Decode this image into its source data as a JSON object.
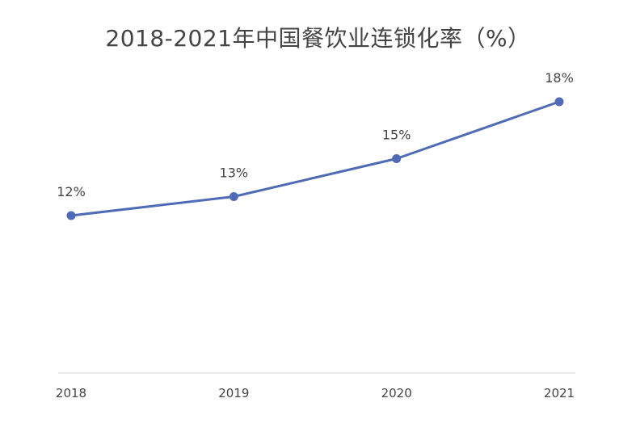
{
  "chart_data": {
    "type": "line",
    "title": "2018-2021年中国餐饮业连锁化率（%）",
    "categories": [
      "2018",
      "2019",
      "2020",
      "2021"
    ],
    "series": [
      {
        "values": [
          12,
          13,
          15,
          18
        ],
        "data_labels": [
          "12%",
          "13%",
          "15%",
          "18%"
        ],
        "color": "#4f6bb5"
      }
    ],
    "xlabel": "",
    "ylabel": "",
    "ylim": [
      3.7,
      18
    ],
    "grid": false,
    "legend": "none",
    "axis_color": "#d0d0d0",
    "text_color": "#444444"
  }
}
